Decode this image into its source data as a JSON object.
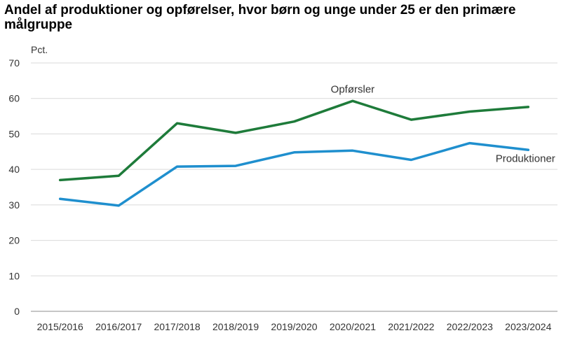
{
  "chart_data": {
    "type": "line",
    "title": "Andel af produktioner og opførelser, hvor børn og unge under 25 er den primære målgruppe",
    "ylabel": "Pct.",
    "xlabel": "",
    "categories": [
      "2015/2016",
      "2016/2017",
      "2017/2018",
      "2018/2019",
      "2019/2020",
      "2020/2021",
      "2021/2022",
      "2022/2023",
      "2023/2024"
    ],
    "ylim": [
      0,
      70
    ],
    "yticks": [
      0,
      10,
      20,
      30,
      40,
      50,
      60,
      70
    ],
    "grid": true,
    "series": [
      {
        "name": "Opførsler",
        "color": "#1e7b3a",
        "values": [
          37.0,
          38.2,
          53.0,
          50.3,
          53.5,
          59.3,
          54.0,
          56.3,
          57.6
        ]
      },
      {
        "name": "Produktioner",
        "color": "#1f8fce",
        "values": [
          31.7,
          29.8,
          40.8,
          41.0,
          44.8,
          45.3,
          42.7,
          47.4,
          45.5
        ]
      }
    ]
  }
}
